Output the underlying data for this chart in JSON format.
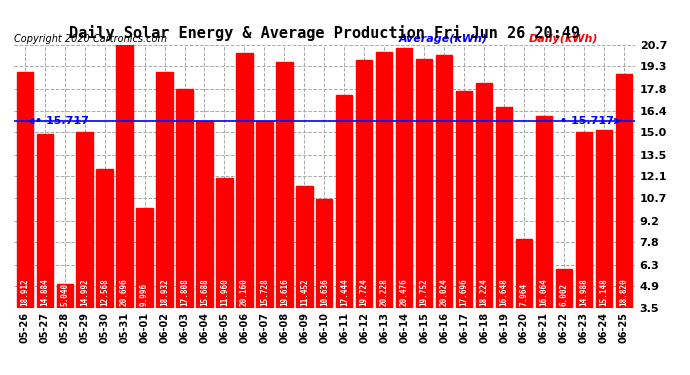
{
  "title": "Daily Solar Energy & Average Production Fri Jun 26 20:49",
  "copyright": "Copyright 2020 Cartronics.com",
  "categories": [
    "05-26",
    "05-27",
    "05-28",
    "05-29",
    "05-30",
    "05-31",
    "06-01",
    "06-02",
    "06-03",
    "06-04",
    "06-05",
    "06-06",
    "06-07",
    "06-08",
    "06-09",
    "06-10",
    "06-11",
    "06-12",
    "06-13",
    "06-14",
    "06-15",
    "06-16",
    "06-17",
    "06-18",
    "06-19",
    "06-20",
    "06-21",
    "06-22",
    "06-23",
    "06-24",
    "06-25"
  ],
  "values": [
    18.912,
    14.884,
    5.04,
    14.992,
    12.568,
    20.696,
    9.996,
    18.932,
    17.808,
    15.688,
    11.96,
    20.16,
    15.728,
    19.616,
    11.452,
    10.636,
    17.444,
    19.724,
    20.228,
    20.476,
    19.752,
    20.024,
    17.696,
    18.224,
    16.648,
    7.964,
    16.064,
    6.002,
    14.988,
    15.148,
    18.82
  ],
  "average": 15.717,
  "average_label": "15.717",
  "bar_color": "#ff0000",
  "average_color": "#0000ff",
  "daily_color": "#ff0000",
  "bg_color": "#ffffff",
  "grid_color": "#aaaaaa",
  "ymin": 3.5,
  "ymax": 20.7,
  "yticks": [
    3.5,
    4.9,
    6.3,
    7.8,
    9.2,
    10.7,
    12.1,
    13.5,
    15.0,
    16.4,
    17.8,
    19.3,
    20.7
  ],
  "title_fontsize": 11,
  "copyright_fontsize": 7,
  "legend_fontsize": 8,
  "value_fontsize": 5.5,
  "axis_fontsize": 7
}
